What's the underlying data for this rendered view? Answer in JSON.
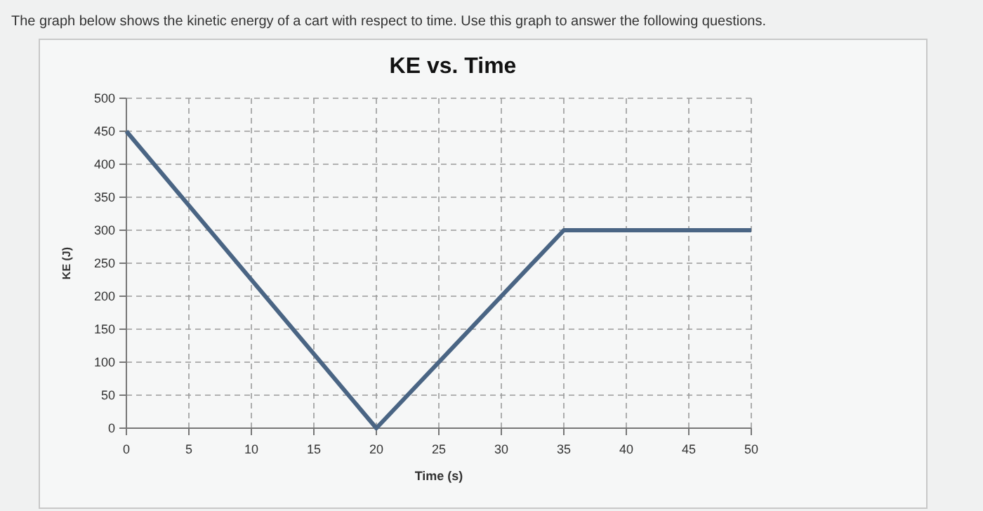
{
  "chart_data": {
    "type": "line",
    "title": "KE vs. Time",
    "xlabel": "Time (s)",
    "ylabel": "KE (J)",
    "annotations": [
      "The graph below shows the kinetic energy of a cart with respect to time. Use this graph to answer the following questions."
    ],
    "x": [
      0,
      20,
      35,
      50
    ],
    "series": [
      {
        "color": "#4a6584",
        "values": [
          450,
          0,
          300,
          300
        ]
      }
    ],
    "xlim": [
      0,
      50
    ],
    "xticks": [
      0,
      5,
      10,
      15,
      20,
      25,
      30,
      35,
      40,
      45,
      50
    ],
    "ylim": [
      0,
      500
    ],
    "yticks": [
      0,
      50,
      100,
      150,
      200,
      250,
      300,
      350,
      400,
      450,
      500
    ],
    "grid": true,
    "marker": "none",
    "line_style": "solid"
  }
}
